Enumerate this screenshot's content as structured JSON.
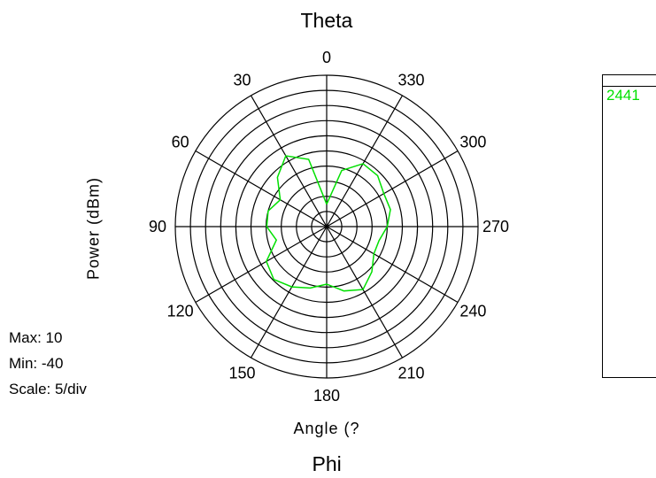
{
  "chart_data": {
    "type": "polar-line",
    "title": "Theta",
    "subtitle": "Phi",
    "radial_label": "Power  (dBm)",
    "angle_label": "Angle  (?",
    "stats": {
      "max": "Max: 10",
      "min": "Min: -40",
      "scale": "Scale: 5/div"
    },
    "rlim": [
      -40,
      10
    ],
    "ring_step": 5,
    "angle_ticks": [
      "0",
      "30",
      "60",
      "90",
      "120",
      "150",
      "180",
      "210",
      "240",
      "270",
      "300",
      "330"
    ],
    "angle_direction": "counterclockwise",
    "zero_at": "top",
    "series": [
      {
        "name": "2441",
        "color": "#00e000",
        "angles": [
          0,
          15,
          30,
          45,
          60,
          75,
          90,
          105,
          120,
          135,
          150,
          165,
          180,
          195,
          210,
          225,
          240,
          255,
          270,
          285,
          300,
          315,
          330,
          345
        ],
        "values": [
          -32.6,
          -17,
          -13,
          -17,
          -22.3,
          -20,
          -20.2,
          -22.8,
          -17,
          -15.3,
          -17,
          -19,
          -21,
          -18,
          -16,
          -18.9,
          -22,
          -22.1,
          -20,
          -18.2,
          -18.2,
          -16.2,
          -16,
          -20.8
        ]
      }
    ]
  }
}
